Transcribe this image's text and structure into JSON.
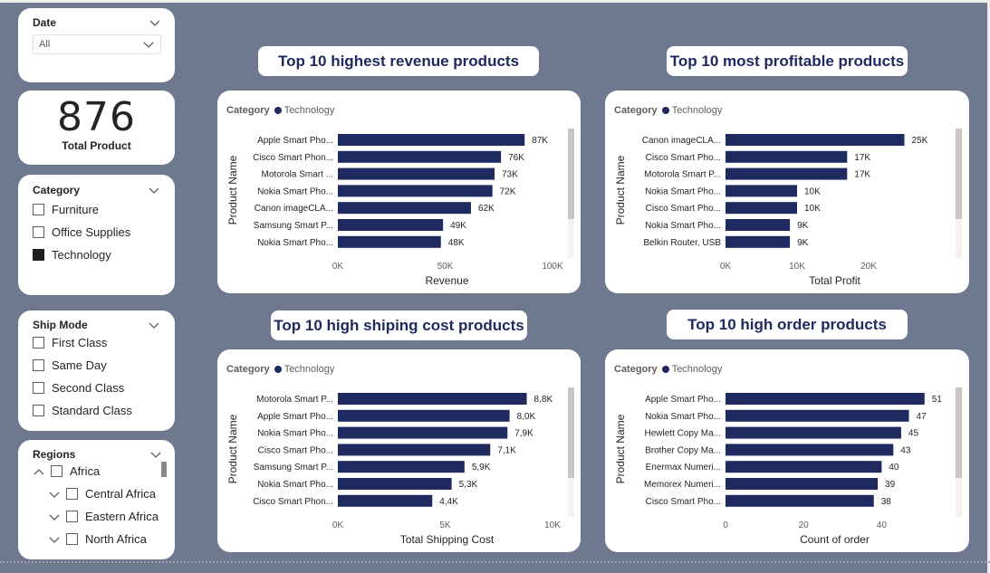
{
  "filters": {
    "date": {
      "title": "Date",
      "value": "All"
    },
    "category": {
      "title": "Category",
      "options": [
        {
          "label": "Furniture",
          "checked": false
        },
        {
          "label": "Office Supplies",
          "checked": false
        },
        {
          "label": "Technology",
          "checked": true
        }
      ]
    },
    "ship_mode": {
      "title": "Ship Mode",
      "options": [
        {
          "label": "First Class",
          "checked": false
        },
        {
          "label": "Same Day",
          "checked": false
        },
        {
          "label": "Second Class",
          "checked": false
        },
        {
          "label": "Standard Class",
          "checked": false
        }
      ]
    },
    "regions": {
      "title": "Regions",
      "items": [
        {
          "label": "Africa",
          "level": 0,
          "expanded": true
        },
        {
          "label": "Central Africa",
          "level": 1,
          "expanded": false
        },
        {
          "label": "Eastern Africa",
          "level": 1,
          "expanded": false
        },
        {
          "label": "North Africa",
          "level": 1,
          "expanded": false
        }
      ]
    }
  },
  "kpi": {
    "value": "876",
    "label": "Total Product"
  },
  "colors": {
    "bar": "#1f2a60",
    "accent": "#1f2a60",
    "background": "#6e788f"
  },
  "chart_data": [
    {
      "type": "bar",
      "orientation": "horizontal",
      "title": "Top 10 highest revenue products",
      "legend_title": "Category",
      "legend": [
        "Technology"
      ],
      "ylabel": "Product Name",
      "xlabel": "Revenue",
      "xlim": [
        0,
        100000
      ],
      "xticks": [
        "0K",
        "50K",
        "100K"
      ],
      "categories": [
        "Apple Smart Pho...",
        "Cisco Smart Phon...",
        "Motorola Smart ...",
        "Nokia Smart Pho...",
        "Canon imageCLA...",
        "Samsung Smart P...",
        "Nokia Smart Pho..."
      ],
      "values": [
        87000,
        76000,
        73000,
        72000,
        62000,
        49000,
        48000
      ],
      "labels": [
        "87K",
        "76K",
        "73K",
        "72K",
        "62K",
        "49K",
        "48K"
      ]
    },
    {
      "type": "bar",
      "orientation": "horizontal",
      "title": "Top 10 most profitable products",
      "legend_title": "Category",
      "legend": [
        "Technology"
      ],
      "ylabel": "Product Name",
      "xlabel": "Total Profit",
      "xlim": [
        0,
        30000
      ],
      "xticks": [
        "0K",
        "10K",
        "20K"
      ],
      "categories": [
        "Canon imageCLA...",
        "Cisco Smart Pho...",
        "Motorola Smart P...",
        "Nokia Smart Pho...",
        "Cisco Smart Pho...",
        "Nokia Smart Pho...",
        "Belkin Router, USB"
      ],
      "values": [
        25000,
        17000,
        17000,
        10000,
        10000,
        9000,
        9000
      ],
      "labels": [
        "25K",
        "17K",
        "17K",
        "10K",
        "10K",
        "9K",
        "9K"
      ]
    },
    {
      "type": "bar",
      "orientation": "horizontal",
      "title": "Top 10 high shiping cost products",
      "legend_title": "Category",
      "legend": [
        "Technology"
      ],
      "ylabel": "Product Name",
      "xlabel": "Total Shipping Cost",
      "xlim": [
        0,
        10000
      ],
      "xticks": [
        "0K",
        "5K",
        "10K"
      ],
      "categories": [
        "Motorola Smart P...",
        "Apple Smart Pho...",
        "Nokia Smart Pho...",
        "Cisco Smart Pho...",
        "Samsung Smart P...",
        "Nokia Smart Pho...",
        "Cisco Smart Phon..."
      ],
      "values": [
        8800,
        8000,
        7900,
        7100,
        5900,
        5300,
        4400
      ],
      "labels": [
        "8,8K",
        "8,0K",
        "7,9K",
        "7,1K",
        "5,9K",
        "5,3K",
        "4,4K"
      ]
    },
    {
      "type": "bar",
      "orientation": "horizontal",
      "title": "Top 10 high order products",
      "legend_title": "Category",
      "legend": [
        "Technology"
      ],
      "ylabel": "Product Name",
      "xlabel": "Count of order",
      "xlim": [
        0,
        55
      ],
      "xticks": [
        "0",
        "20",
        "40"
      ],
      "categories": [
        "Apple Smart Pho...",
        "Nokia Smart Pho...",
        "Hewlett Copy Ma...",
        "Brother Copy Ma...",
        "Enermax Numeri...",
        "Memorex Numeri...",
        "Cisco Smart Pho..."
      ],
      "values": [
        51,
        47,
        45,
        43,
        40,
        39,
        38
      ],
      "labels": [
        "51",
        "47",
        "45",
        "43",
        "40",
        "39",
        "38"
      ]
    }
  ]
}
